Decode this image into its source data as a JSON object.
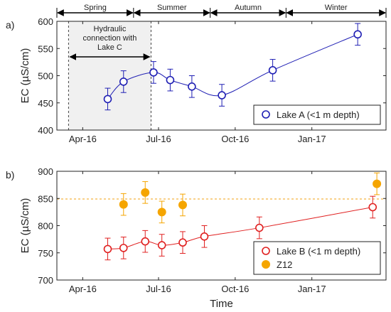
{
  "seasons": [
    {
      "label": "Spring",
      "start": "2016-03-01",
      "end": "2016-06-01"
    },
    {
      "label": "Summer",
      "start": "2016-06-01",
      "end": "2016-09-01"
    },
    {
      "label": "Autumn",
      "start": "2016-09-01",
      "end": "2016-12-01"
    },
    {
      "label": "Winter",
      "start": "2016-12-01",
      "end": "2017-03-31"
    }
  ],
  "xaxis": {
    "label": "Time",
    "range": [
      "2016-03-01",
      "2017-03-31"
    ],
    "ticks": [
      {
        "date": "2016-04-01",
        "label": "Apr-16"
      },
      {
        "date": "2016-07-01",
        "label": "Jul-16"
      },
      {
        "date": "2016-10-01",
        "label": "Oct-16"
      },
      {
        "date": "2017-01-01",
        "label": "Jan-17"
      }
    ]
  },
  "chart_data": [
    {
      "type": "scatter",
      "panel_label": "a)",
      "ylabel": "EC (µS/cm)",
      "ylim": [
        400,
        600
      ],
      "yticks": [
        400,
        450,
        500,
        550,
        600
      ],
      "grid": false,
      "legend_position": "bottom-right",
      "annotation": {
        "text_lines": [
          "Hydraulic",
          "connection with",
          "Lake C"
        ],
        "start": "2016-03-15",
        "end": "2016-06-22",
        "fill": "#f0f0f0"
      },
      "series": [
        {
          "name": "Lake A (<1 m depth)",
          "marker": "open-circle",
          "color": "#1f1fb4",
          "points": [
            {
              "x": "2016-05-01",
              "y": 457,
              "err": 20
            },
            {
              "x": "2016-05-20",
              "y": 489,
              "err": 20
            },
            {
              "x": "2016-06-25",
              "y": 506,
              "err": 20
            },
            {
              "x": "2016-07-15",
              "y": 492,
              "err": 20
            },
            {
              "x": "2016-08-10",
              "y": 480,
              "err": 20
            },
            {
              "x": "2016-09-15",
              "y": 464,
              "err": 20
            },
            {
              "x": "2016-11-15",
              "y": 510,
              "err": 20
            },
            {
              "x": "2017-02-25",
              "y": 576,
              "err": 20
            }
          ]
        }
      ]
    },
    {
      "type": "scatter",
      "panel_label": "b)",
      "ylabel": "EC (µS/cm)",
      "ylim": [
        700,
        900
      ],
      "yticks": [
        700,
        750,
        800,
        850,
        900
      ],
      "grid": false,
      "legend_position": "bottom-right",
      "reference_line": {
        "y": 849,
        "color": "#f5b342"
      },
      "series": [
        {
          "name": "Lake B (<1 m depth)",
          "marker": "open-circle",
          "color": "#e02020",
          "points": [
            {
              "x": "2016-05-01",
              "y": 757,
              "err": 20
            },
            {
              "x": "2016-05-20",
              "y": 759,
              "err": 20
            },
            {
              "x": "2016-06-15",
              "y": 771,
              "err": 20
            },
            {
              "x": "2016-07-05",
              "y": 764,
              "err": 20
            },
            {
              "x": "2016-07-30",
              "y": 769,
              "err": 20
            },
            {
              "x": "2016-08-25",
              "y": 780,
              "err": 20
            },
            {
              "x": "2016-10-30",
              "y": 796,
              "err": 20
            },
            {
              "x": "2017-03-15",
              "y": 834,
              "err": 20
            }
          ]
        },
        {
          "name": "Z12",
          "marker": "filled-circle",
          "color": "#f5a500",
          "points": [
            {
              "x": "2016-05-20",
              "y": 839,
              "err": 20
            },
            {
              "x": "2016-06-15",
              "y": 861,
              "err": 20
            },
            {
              "x": "2016-07-05",
              "y": 825,
              "err": 20
            },
            {
              "x": "2016-07-30",
              "y": 838,
              "err": 20
            },
            {
              "x": "2017-03-20",
              "y": 877,
              "err": 20
            }
          ]
        }
      ]
    }
  ]
}
